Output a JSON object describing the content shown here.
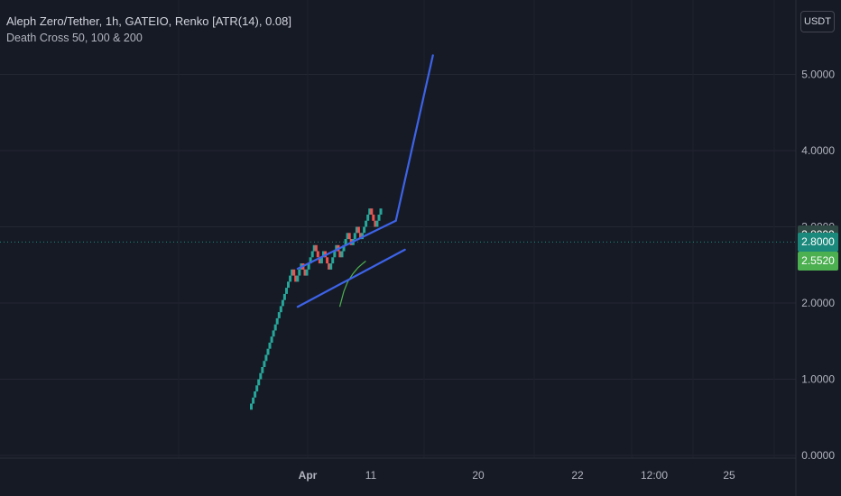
{
  "legend": {
    "title": "Aleph Zero/Tether, 1h, GATEIO, Renko [ATR(14), 0.08]",
    "indicator": "Death Cross 50, 100 & 200"
  },
  "currency_button": "USDT",
  "price_tags": [
    {
      "label": "2.8999",
      "value": 2.8999,
      "color": "#2f4a44"
    },
    {
      "label": "2.8000",
      "value": 2.8,
      "color": "#1b8a7d"
    },
    {
      "label": "2.5520",
      "value": 2.552,
      "color": "#4caf50"
    }
  ],
  "chart_data": {
    "type": "line",
    "title": "Aleph Zero/Tether, 1h, GATEIO, Renko [ATR(14), 0.08]",
    "y_axis": {
      "min": 0,
      "max": 5.3,
      "ticks": [
        "0.0000",
        "1.0000",
        "2.0000",
        "3.0000",
        "4.0000",
        "5.0000"
      ],
      "tick_values": [
        0,
        1,
        2,
        3,
        4,
        5
      ]
    },
    "x_axis": {
      "ticks": [
        "Apr",
        "11",
        "20",
        "22",
        "12:00",
        "25"
      ],
      "tick_positions": [
        0,
        1,
        2,
        3,
        4,
        5
      ]
    },
    "renko_bricks": {
      "brick_size": 0.08,
      "sequence": [
        {
          "dir": "up",
          "count": 17
        },
        {
          "dir": "up",
          "count": 3
        },
        {
          "dir": "up",
          "count": 3
        },
        {
          "dir": "down",
          "count": 2
        },
        {
          "dir": "up",
          "count": 3
        },
        {
          "dir": "down",
          "count": 2
        },
        {
          "dir": "up",
          "count": 5
        },
        {
          "dir": "down",
          "count": 3
        },
        {
          "dir": "up",
          "count": 2
        },
        {
          "dir": "down",
          "count": 3
        },
        {
          "dir": "up",
          "count": 4
        },
        {
          "dir": "down",
          "count": 2
        },
        {
          "dir": "up",
          "count": 4
        },
        {
          "dir": "down",
          "count": 2
        },
        {
          "dir": "up",
          "count": 3
        },
        {
          "dir": "down",
          "count": 2
        },
        {
          "dir": "up",
          "count": 5
        },
        {
          "dir": "down",
          "count": 3
        },
        {
          "dir": "up",
          "count": 3
        }
      ],
      "start": 0.6,
      "colors": {
        "up": "#26a69a",
        "down": "#ef5350"
      }
    },
    "series": [
      {
        "kind": "moving-average",
        "color": "#4caf50",
        "points": [
          [
            0.32,
            1.95
          ],
          [
            0.36,
            2.15
          ],
          [
            0.4,
            2.28
          ],
          [
            0.45,
            2.38
          ],
          [
            0.5,
            2.46
          ],
          [
            0.55,
            2.52
          ],
          [
            0.58,
            2.55
          ]
        ]
      }
    ],
    "drawings": [
      {
        "kind": "channel-upper",
        "color": "#3d63e8",
        "points": [
          [
            -0.1,
            2.45
          ],
          [
            0.88,
            3.08
          ]
        ]
      },
      {
        "kind": "channel-lower",
        "color": "#3d63e8",
        "points": [
          [
            -0.1,
            1.95
          ],
          [
            0.97,
            2.7
          ]
        ]
      },
      {
        "kind": "target-line",
        "color": "#3d63e8",
        "points": [
          [
            0.88,
            3.08
          ],
          [
            1.25,
            5.25
          ]
        ]
      }
    ],
    "current_price": 2.8,
    "grid": true
  }
}
